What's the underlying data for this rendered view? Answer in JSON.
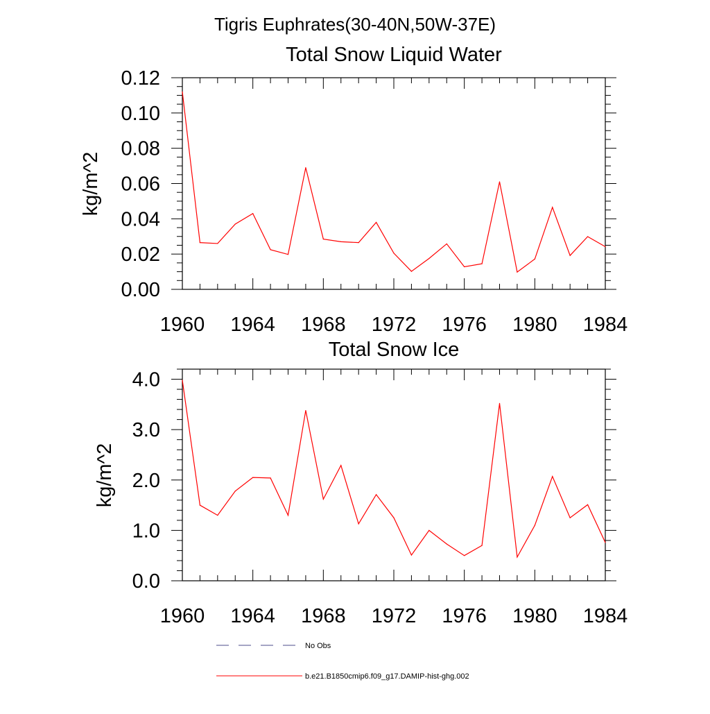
{
  "figure": {
    "title": "Tigris Euphrates(30-40N,50W-37E)"
  },
  "chart_data": [
    {
      "type": "line",
      "title": "Total Snow Liquid Water",
      "xlabel": "",
      "ylabel": "kg/m^2",
      "xlim": [
        1960,
        1984
      ],
      "ylim": [
        0,
        0.12
      ],
      "xticks": [
        "1960",
        "1964",
        "1968",
        "1972",
        "1976",
        "1980",
        "1984"
      ],
      "yticks": [
        "0.00",
        "0.02",
        "0.04",
        "0.06",
        "0.08",
        "0.10",
        "0.12"
      ],
      "x": [
        1960,
        1961,
        1962,
        1963,
        1964,
        1965,
        1966,
        1967,
        1968,
        1969,
        1970,
        1971,
        1972,
        1973,
        1974,
        1975,
        1976,
        1977,
        1978,
        1979,
        1980,
        1981,
        1982,
        1983,
        1984
      ],
      "series": [
        {
          "name": "b.e21.B1850cmip6.f09_g17.DAMIP-hist-ghg.002",
          "color": "#ff0000",
          "values": [
            0.112,
            0.0265,
            0.026,
            0.037,
            0.043,
            0.0225,
            0.0198,
            0.069,
            0.0285,
            0.027,
            0.0265,
            0.038,
            0.0205,
            0.0102,
            0.0175,
            0.0258,
            0.0128,
            0.0145,
            0.061,
            0.0098,
            0.0172,
            0.0465,
            0.0192,
            0.0299,
            0.0242
          ]
        }
      ]
    },
    {
      "type": "line",
      "title": "Total Snow Ice",
      "xlabel": "",
      "ylabel": "kg/m^2",
      "xlim": [
        1960,
        1984
      ],
      "ylim": [
        0,
        4.2
      ],
      "xticks": [
        "1960",
        "1964",
        "1968",
        "1972",
        "1976",
        "1980",
        "1984"
      ],
      "yticks": [
        "0.0",
        "1.0",
        "2.0",
        "3.0",
        "4.0"
      ],
      "x": [
        1960,
        1961,
        1962,
        1963,
        1964,
        1965,
        1966,
        1967,
        1968,
        1969,
        1970,
        1971,
        1972,
        1973,
        1974,
        1975,
        1976,
        1977,
        1978,
        1979,
        1980,
        1981,
        1982,
        1983,
        1984
      ],
      "series": [
        {
          "name": "b.e21.B1850cmip6.f09_g17.DAMIP-hist-ghg.002",
          "color": "#ff0000",
          "values": [
            3.98,
            1.5,
            1.3,
            1.78,
            2.05,
            2.04,
            1.3,
            3.38,
            1.62,
            2.29,
            1.13,
            1.71,
            1.25,
            0.51,
            1.0,
            0.73,
            0.5,
            0.7,
            3.52,
            0.47,
            1.1,
            2.07,
            1.25,
            1.51,
            0.76
          ]
        }
      ]
    }
  ],
  "legend": {
    "items": [
      {
        "label": "No Obs",
        "style": "dashed",
        "color": "#4b4b8a"
      },
      {
        "label": "b.e21.B1850cmip6.f09_g17.DAMIP-hist-ghg.002",
        "style": "solid",
        "color": "#ff0000"
      }
    ]
  }
}
